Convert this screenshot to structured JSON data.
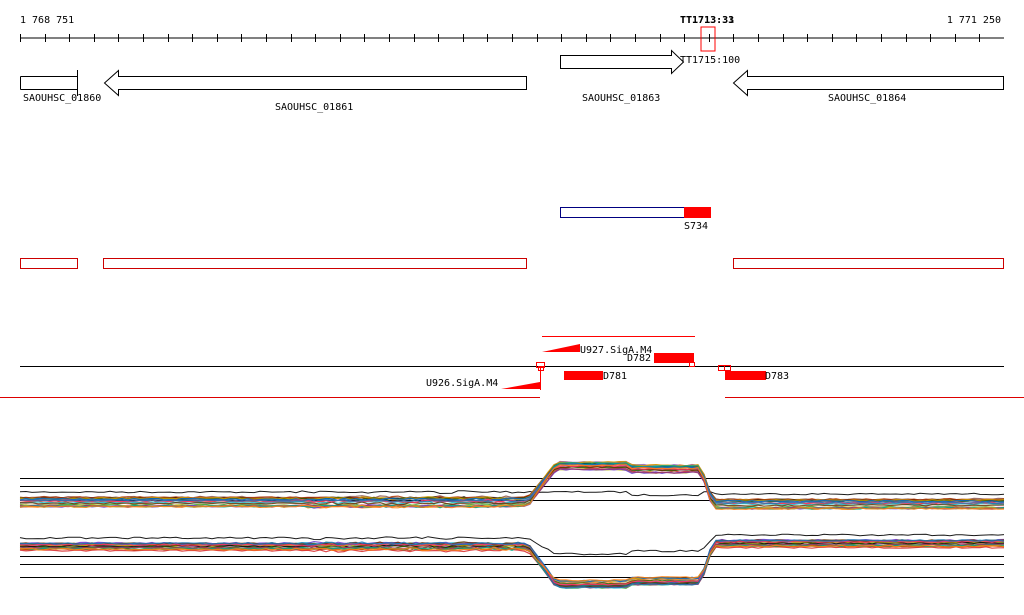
{
  "ruler": {
    "start_label": "1 768 751",
    "end_label": "1 771 250",
    "terminator_label_a": "TT1713:33",
    "terminator_label_b": "TT1713:31"
  },
  "genes": [
    {
      "name": "SAOUHSC_01860",
      "strand": "-"
    },
    {
      "name": "SAOUHSC_01861",
      "strand": "-"
    },
    {
      "name": "SAOUHSC_01863",
      "strand": "+"
    },
    {
      "name": "SAOUHSC_01864",
      "strand": "-"
    }
  ],
  "terminator_feature": {
    "label": "TT1715:100"
  },
  "srna": {
    "label": "S734"
  },
  "promoters": [
    {
      "label": "U927.SigA.M4",
      "strand": "+"
    },
    {
      "label": "U926.SigA.M4",
      "strand": "+"
    }
  ],
  "segments": [
    {
      "label": "D782"
    },
    {
      "label": "D781"
    },
    {
      "label": "D783"
    }
  ],
  "colors": {
    "gene_outline": "#000000",
    "cds_outline": "#cc0000",
    "feature_red": "#ff0000",
    "srna_outline": "#000080",
    "baseline_red": "#dd0000"
  },
  "expression_panels": [
    {
      "name": "upper",
      "shape": "high between SAOUHSC_01863 start and TT1715"
    },
    {
      "name": "lower",
      "shape": "low between SAOUHSC_01863 start and TT1715"
    }
  ]
}
